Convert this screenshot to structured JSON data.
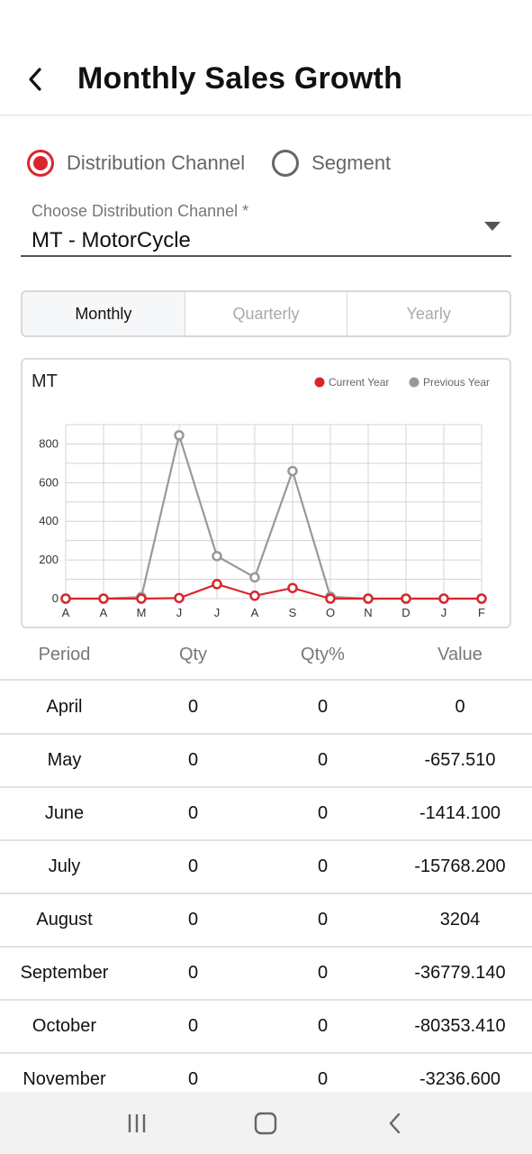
{
  "header": {
    "title": "Monthly Sales Growth"
  },
  "filter": {
    "options": [
      {
        "label": "Distribution Channel",
        "checked": true
      },
      {
        "label": "Segment",
        "checked": false
      }
    ],
    "select_caption": "Choose Distribution Channel *",
    "select_value": "MT - MotorCycle"
  },
  "tabs": [
    {
      "label": "Monthly",
      "active": true
    },
    {
      "label": "Quarterly",
      "active": false
    },
    {
      "label": "Yearly",
      "active": false
    }
  ],
  "chart_data": {
    "type": "line",
    "title": "MT",
    "categories": [
      "A",
      "A",
      "M",
      "J",
      "J",
      "A",
      "S",
      "O",
      "N",
      "D",
      "J",
      "F"
    ],
    "series": [
      {
        "name": "Current Year",
        "color": "#d9262e",
        "values": [
          0,
          0,
          0,
          3,
          75,
          15,
          55,
          0,
          0,
          0,
          0,
          0
        ]
      },
      {
        "name": "Previous Year",
        "color": "#999999",
        "values": [
          0,
          0,
          8,
          845,
          220,
          110,
          660,
          10,
          0,
          0,
          0,
          0
        ]
      }
    ],
    "y_ticks": [
      "0",
      "200",
      "400",
      "600",
      "800"
    ],
    "ylim": [
      0,
      900
    ],
    "grid": true,
    "legend": "top-right"
  },
  "table": {
    "columns": [
      "Period",
      "Qty",
      "Qty%",
      "Value"
    ],
    "rows": [
      [
        "April",
        "0",
        "0",
        "0"
      ],
      [
        "May",
        "0",
        "0",
        "-657.510"
      ],
      [
        "June",
        "0",
        "0",
        "-1414.100"
      ],
      [
        "July",
        "0",
        "0",
        "-15768.200"
      ],
      [
        "August",
        "0",
        "0",
        "3204"
      ],
      [
        "September",
        "0",
        "0",
        "-36779.140"
      ],
      [
        "October",
        "0",
        "0",
        "-80353.410"
      ],
      [
        "November",
        "0",
        "0",
        "-3236.600"
      ]
    ]
  },
  "nav": {
    "icons": [
      "recent-apps-icon",
      "home-icon",
      "back-icon"
    ]
  }
}
